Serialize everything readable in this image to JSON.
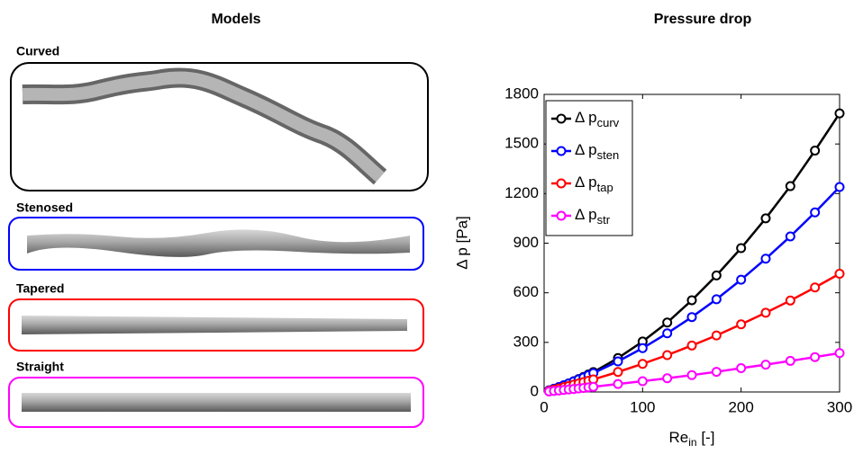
{
  "models": {
    "title": "Models",
    "labels": [
      "Curved",
      "Stenosed",
      "Tapered",
      "Straight"
    ]
  },
  "chart_data": {
    "type": "line",
    "title": "Pressure drop",
    "x_label": {
      "text": "Re",
      "sub": "in",
      "suffix": " [-]"
    },
    "y_label": "Δ p [Pa]",
    "x": [
      5,
      10,
      15,
      20,
      25,
      30,
      35,
      40,
      45,
      50,
      75,
      100,
      125,
      150,
      175,
      200,
      225,
      250,
      275,
      300
    ],
    "xlim": [
      0,
      300
    ],
    "xticks": [
      0,
      100,
      200,
      300
    ],
    "ylim": [
      0,
      1800
    ],
    "yticks": [
      0,
      300,
      600,
      900,
      1200,
      1500,
      1800
    ],
    "legend": "upper-left",
    "series": [
      {
        "name": "Δ p",
        "name_sub": "curv",
        "color": "#000000",
        "values": [
          9,
          19,
          29,
          40,
          52,
          65,
          78,
          91,
          106,
          120,
          205,
          305,
          420,
          555,
          705,
          870,
          1050,
          1245,
          1460,
          1685
        ]
      },
      {
        "name": "Δ p",
        "name_sub": "sten",
        "color": "#0000ff",
        "values": [
          10,
          20,
          30,
          41,
          52,
          64,
          76,
          88,
          101,
          114,
          185,
          265,
          355,
          453,
          561,
          679,
          806,
          941,
          1086,
          1240
        ]
      },
      {
        "name": "Δ p",
        "name_sub": "tap",
        "color": "#ff0000",
        "values": [
          7,
          14,
          21,
          29,
          36,
          44,
          52,
          60,
          68,
          76,
          121,
          170,
          223,
          281,
          342,
          409,
          479,
          553,
          632,
          715
        ]
      },
      {
        "name": "Δ p",
        "name_sub": "str",
        "color": "#ff00ff",
        "values": [
          3,
          6,
          9,
          12,
          15,
          18,
          21,
          24,
          28,
          31,
          48,
          65,
          83,
          102,
          122,
          144,
          165,
          188,
          211,
          235
        ]
      }
    ]
  }
}
